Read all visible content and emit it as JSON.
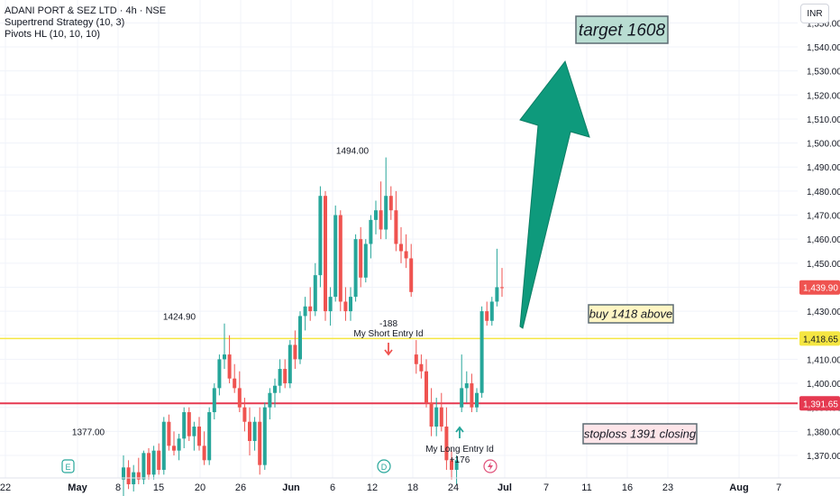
{
  "legend": {
    "symbol": "ADANI PORT & SEZ LTD · 4h · NSE",
    "indicator1": "Supertrend Strategy (10, 3)",
    "indicator2": "Pivots HL (10, 10, 10)"
  },
  "currency": "INR",
  "colors": {
    "up": "#26a69a",
    "down": "#ef5350",
    "buy_line": "#f5e642",
    "stop_line": "#e53950",
    "arrow": "#0e9a7c",
    "grid": "#f0f3fa",
    "axis_text": "#131722",
    "note_border": "#5d6b73",
    "target_bg": "#b9ddd2",
    "buy_bg": "#fff6c4",
    "stop_bg": "#fde5e9"
  },
  "chart_data": {
    "type": "candlestick",
    "y_axis": {
      "ticks": [
        "1,370.00",
        "1,380.00",
        "1,390.00",
        "1,400.00",
        "1,410.00",
        "1,420.00",
        "1,430.00",
        "1,440.00",
        "1,450.00",
        "1,460.00",
        "1,470.00",
        "1,480.00",
        "1,490.00",
        "1,500.00",
        "1,510.00",
        "1,520.00",
        "1,530.00",
        "1,540.00",
        "1,550.00"
      ]
    },
    "x_axis": {
      "ticks": [
        "22",
        "May",
        "8",
        "15",
        "20",
        "26",
        "Jun",
        "6",
        "12",
        "18",
        "24",
        "Jul",
        "7",
        "11",
        "16",
        "23",
        "Aug",
        "7"
      ]
    },
    "price_labels": [
      {
        "value": 1439.9,
        "text": "1,439.90",
        "kind": "last"
      },
      {
        "value": 1418.65,
        "text": "1,418.65",
        "kind": "buy"
      },
      {
        "value": 1391.65,
        "text": "1,391.65",
        "kind": "stop"
      }
    ],
    "pivots": [
      {
        "text": "1377.00",
        "value": 1377.0
      },
      {
        "text": "1424.90",
        "value": 1424.9
      },
      {
        "text": "1494.00",
        "value": 1494.0
      }
    ],
    "signals": [
      {
        "label": "My Short Entry Id",
        "pnl": "-188",
        "direction": "short"
      },
      {
        "label": "My Long Entry Id",
        "pnl": "+176",
        "direction": "long"
      }
    ],
    "notes": {
      "target": "target 1608",
      "buy": "buy 1418 above",
      "stop": "stoploss 1391 closing"
    },
    "event_markers": [
      "E",
      "D"
    ],
    "candles": [
      {
        "o": 1360,
        "h": 1370,
        "l": 1352,
        "c": 1365
      },
      {
        "o": 1365,
        "h": 1368,
        "l": 1356,
        "c": 1358
      },
      {
        "o": 1358,
        "h": 1366,
        "l": 1355,
        "c": 1363
      },
      {
        "o": 1363,
        "h": 1369,
        "l": 1358,
        "c": 1360
      },
      {
        "o": 1360,
        "h": 1372,
        "l": 1358,
        "c": 1371
      },
      {
        "o": 1371,
        "h": 1373,
        "l": 1360,
        "c": 1362
      },
      {
        "o": 1362,
        "h": 1374,
        "l": 1360,
        "c": 1372
      },
      {
        "o": 1372,
        "h": 1375,
        "l": 1362,
        "c": 1364
      },
      {
        "o": 1364,
        "h": 1386,
        "l": 1362,
        "c": 1384
      },
      {
        "o": 1384,
        "h": 1387,
        "l": 1372,
        "c": 1374
      },
      {
        "o": 1374,
        "h": 1380,
        "l": 1370,
        "c": 1372
      },
      {
        "o": 1372,
        "h": 1379,
        "l": 1368,
        "c": 1377
      },
      {
        "o": 1377,
        "h": 1390,
        "l": 1373,
        "c": 1388
      },
      {
        "o": 1388,
        "h": 1390,
        "l": 1376,
        "c": 1378
      },
      {
        "o": 1378,
        "h": 1384,
        "l": 1372,
        "c": 1382
      },
      {
        "o": 1382,
        "h": 1386,
        "l": 1372,
        "c": 1374
      },
      {
        "o": 1374,
        "h": 1380,
        "l": 1366,
        "c": 1368
      },
      {
        "o": 1368,
        "h": 1390,
        "l": 1366,
        "c": 1388
      },
      {
        "o": 1388,
        "h": 1400,
        "l": 1385,
        "c": 1398
      },
      {
        "o": 1398,
        "h": 1412,
        "l": 1395,
        "c": 1410
      },
      {
        "o": 1410,
        "h": 1424.9,
        "l": 1406,
        "c": 1412
      },
      {
        "o": 1412,
        "h": 1420,
        "l": 1400,
        "c": 1402
      },
      {
        "o": 1402,
        "h": 1408,
        "l": 1396,
        "c": 1398
      },
      {
        "o": 1398,
        "h": 1405,
        "l": 1388,
        "c": 1390
      },
      {
        "o": 1390,
        "h": 1394,
        "l": 1380,
        "c": 1384
      },
      {
        "o": 1384,
        "h": 1390,
        "l": 1370,
        "c": 1376
      },
      {
        "o": 1376,
        "h": 1386,
        "l": 1372,
        "c": 1384
      },
      {
        "o": 1384,
        "h": 1390,
        "l": 1362,
        "c": 1366
      },
      {
        "o": 1366,
        "h": 1392,
        "l": 1364,
        "c": 1390
      },
      {
        "o": 1390,
        "h": 1398,
        "l": 1385,
        "c": 1396
      },
      {
        "o": 1396,
        "h": 1402,
        "l": 1390,
        "c": 1399
      },
      {
        "o": 1399,
        "h": 1410,
        "l": 1396,
        "c": 1406
      },
      {
        "o": 1406,
        "h": 1410,
        "l": 1398,
        "c": 1400
      },
      {
        "o": 1400,
        "h": 1418,
        "l": 1398,
        "c": 1416
      },
      {
        "o": 1416,
        "h": 1422,
        "l": 1406,
        "c": 1410
      },
      {
        "o": 1410,
        "h": 1430,
        "l": 1408,
        "c": 1428
      },
      {
        "o": 1428,
        "h": 1436,
        "l": 1422,
        "c": 1432
      },
      {
        "o": 1432,
        "h": 1440,
        "l": 1426,
        "c": 1430
      },
      {
        "o": 1430,
        "h": 1450,
        "l": 1428,
        "c": 1445
      },
      {
        "o": 1445,
        "h": 1482,
        "l": 1440,
        "c": 1478
      },
      {
        "o": 1478,
        "h": 1480,
        "l": 1426,
        "c": 1430
      },
      {
        "o": 1430,
        "h": 1440,
        "l": 1424,
        "c": 1436
      },
      {
        "o": 1436,
        "h": 1474,
        "l": 1434,
        "c": 1470
      },
      {
        "o": 1470,
        "h": 1472,
        "l": 1430,
        "c": 1434
      },
      {
        "o": 1434,
        "h": 1440,
        "l": 1426,
        "c": 1430
      },
      {
        "o": 1430,
        "h": 1440,
        "l": 1426,
        "c": 1436
      },
      {
        "o": 1436,
        "h": 1462,
        "l": 1434,
        "c": 1460
      },
      {
        "o": 1460,
        "h": 1465,
        "l": 1440,
        "c": 1444
      },
      {
        "o": 1444,
        "h": 1460,
        "l": 1442,
        "c": 1458
      },
      {
        "o": 1458,
        "h": 1470,
        "l": 1452,
        "c": 1468
      },
      {
        "o": 1468,
        "h": 1476,
        "l": 1462,
        "c": 1472
      },
      {
        "o": 1472,
        "h": 1484,
        "l": 1460,
        "c": 1464
      },
      {
        "o": 1464,
        "h": 1494,
        "l": 1460,
        "c": 1478
      },
      {
        "o": 1478,
        "h": 1482,
        "l": 1468,
        "c": 1472
      },
      {
        "o": 1472,
        "h": 1480,
        "l": 1455,
        "c": 1458
      },
      {
        "o": 1458,
        "h": 1465,
        "l": 1450,
        "c": 1455
      },
      {
        "o": 1455,
        "h": 1462,
        "l": 1448,
        "c": 1452
      },
      {
        "o": 1452,
        "h": 1458,
        "l": 1436,
        "c": 1438
      },
      {
        "o": 1412,
        "h": 1418,
        "l": 1404,
        "c": 1408
      },
      {
        "o": 1408,
        "h": 1412,
        "l": 1402,
        "c": 1405
      },
      {
        "o": 1405,
        "h": 1410,
        "l": 1390,
        "c": 1392
      },
      {
        "o": 1392,
        "h": 1398,
        "l": 1378,
        "c": 1382
      },
      {
        "o": 1382,
        "h": 1394,
        "l": 1378,
        "c": 1390
      },
      {
        "o": 1390,
        "h": 1396,
        "l": 1380,
        "c": 1382
      },
      {
        "o": 1382,
        "h": 1390,
        "l": 1364,
        "c": 1368
      },
      {
        "o": 1368,
        "h": 1372,
        "l": 1360,
        "c": 1364
      },
      {
        "o": 1364,
        "h": 1370,
        "l": 1358,
        "c": 1368
      },
      {
        "o": 1390,
        "h": 1412,
        "l": 1388,
        "c": 1398
      },
      {
        "o": 1398,
        "h": 1405,
        "l": 1392,
        "c": 1400
      },
      {
        "o": 1400,
        "h": 1404,
        "l": 1388,
        "c": 1390
      },
      {
        "o": 1390,
        "h": 1398,
        "l": 1388,
        "c": 1396
      },
      {
        "o": 1396,
        "h": 1432,
        "l": 1394,
        "c": 1430
      },
      {
        "o": 1430,
        "h": 1434,
        "l": 1424,
        "c": 1426
      },
      {
        "o": 1426,
        "h": 1436,
        "l": 1424,
        "c": 1434
      },
      {
        "o": 1434,
        "h": 1456,
        "l": 1432,
        "c": 1440
      },
      {
        "o": 1440,
        "h": 1448,
        "l": 1436,
        "c": 1439.9
      }
    ]
  }
}
